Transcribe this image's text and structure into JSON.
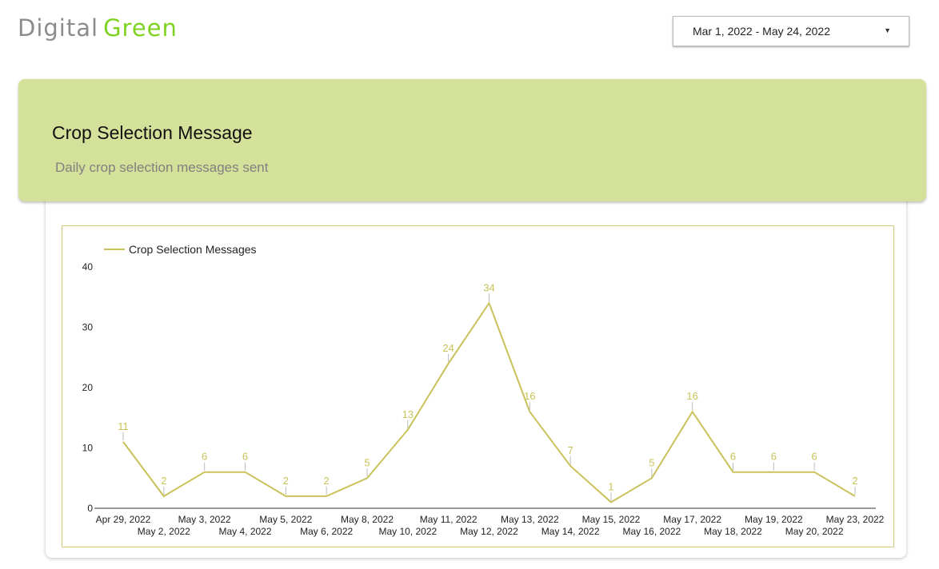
{
  "logo": {
    "word1": "Digital",
    "word2": "Green"
  },
  "date_range": {
    "value": "Mar 1, 2022 - May 24, 2022",
    "caret_icon": "▼"
  },
  "header": {
    "title": "Crop Selection Message",
    "subtitle": "Daily crop selection messages sent"
  },
  "colors": {
    "line": "#c9c25a",
    "header_bg": "#d4e19a",
    "brand_green": "#7ed321"
  },
  "chart_data": {
    "type": "line",
    "title": "",
    "xlabel": "",
    "ylabel": "",
    "ylim": [
      0,
      40
    ],
    "yticks": [
      0,
      10,
      20,
      30,
      40
    ],
    "legend": "top-left",
    "grid": false,
    "x": [
      "Apr 29, 2022",
      "May 2, 2022",
      "May 3, 2022",
      "May 4, 2022",
      "May 5, 2022",
      "May 6, 2022",
      "May 8, 2022",
      "May 10, 2022",
      "May 11, 2022",
      "May 12, 2022",
      "May 13, 2022",
      "May 14, 2022",
      "May 15, 2022",
      "May 16, 2022",
      "May 17, 2022",
      "May 18, 2022",
      "May 19, 2022",
      "May 20, 2022",
      "May 23, 2022"
    ],
    "series": [
      {
        "name": "Crop Selection Messages",
        "values": [
          11,
          2,
          6,
          6,
          2,
          2,
          5,
          13,
          24,
          34,
          16,
          7,
          1,
          5,
          16,
          6,
          6,
          6,
          2
        ]
      }
    ]
  }
}
